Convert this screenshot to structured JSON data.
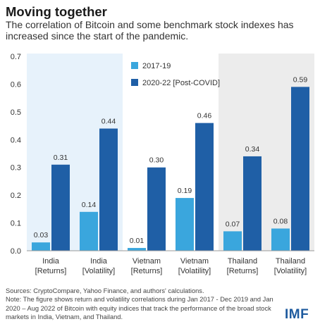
{
  "header": {
    "title": "Moving together",
    "subtitle": "The correlation of Bitcoin and some benchmark stock indexes has increased since the start of the pandemic."
  },
  "chart_data": {
    "type": "bar",
    "title": "",
    "xlabel": "",
    "ylabel": "",
    "ylim": [
      0,
      0.7
    ],
    "yticks": [
      "0.0",
      "0.1",
      "0.2",
      "0.3",
      "0.4",
      "0.5",
      "0.6",
      "0.7"
    ],
    "categories": [
      [
        "India",
        "[Returns]"
      ],
      [
        "India",
        "[Volatility]"
      ],
      [
        "Vietnam",
        "[Returns]"
      ],
      [
        "Vietnam",
        "[Volatility]"
      ],
      [
        "Thailand",
        "[Returns]"
      ],
      [
        "Thailand",
        "[Volatility]"
      ]
    ],
    "series": [
      {
        "name": "2017-19",
        "color": "#3aa6dd",
        "values": [
          0.03,
          0.14,
          0.01,
          0.19,
          0.07,
          0.08
        ],
        "labels": [
          "0.03",
          "0.14",
          "0.01",
          "0.19",
          "0.07",
          "0.08"
        ]
      },
      {
        "name": "2020-22 [Post-COVID]",
        "color": "#1f5fa6",
        "values": [
          0.31,
          0.44,
          0.3,
          0.46,
          0.34,
          0.59
        ],
        "labels": [
          "0.31",
          "0.44",
          "0.30",
          "0.46",
          "0.34",
          "0.59"
        ]
      }
    ],
    "highlight_regions": [
      {
        "country": "India",
        "color": "#e7f2fb"
      },
      {
        "country": "Thailand",
        "color": "#ececec"
      }
    ],
    "legend_position": "top-center",
    "grid": false
  },
  "footer": {
    "sources": "Sources: CryptoCompare, Yahoo Finance, and authors' calculations.",
    "note": "Note: The figure shows return and volatility correlations during Jan 2017 - Dec 2019 and Jan 2020 – Aug 2022 of Bitcoin with equity indices that track the performance of the broad stock markets in India, Vietnam, and Thailand.",
    "logo": "IMF"
  }
}
